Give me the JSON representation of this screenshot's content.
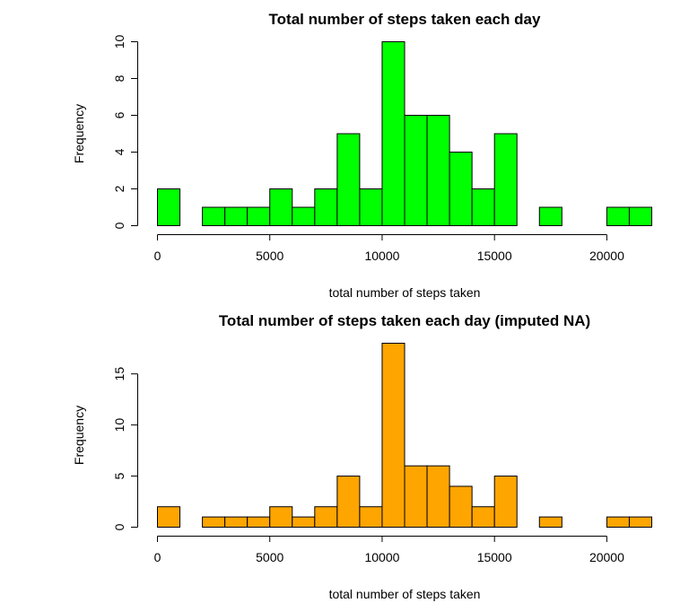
{
  "chart_data": [
    {
      "type": "bar",
      "title": "Total number of steps taken each day",
      "xlabel": "total number of steps taken",
      "ylabel": "Frequency",
      "bar_color": "#00ff00",
      "bin_width": 1000,
      "bins_start": [
        0,
        1000,
        2000,
        3000,
        4000,
        5000,
        6000,
        7000,
        8000,
        9000,
        10000,
        11000,
        12000,
        13000,
        14000,
        15000,
        16000,
        17000,
        18000,
        19000,
        20000,
        21000
      ],
      "values": [
        2,
        0,
        1,
        1,
        1,
        2,
        1,
        2,
        5,
        2,
        10,
        6,
        6,
        4,
        2,
        5,
        0,
        1,
        0,
        0,
        1,
        1
      ],
      "xlim": [
        0,
        22000
      ],
      "ylim": [
        0,
        10
      ],
      "x_ticks": [
        0,
        5000,
        10000,
        15000,
        20000
      ],
      "y_ticks": [
        0,
        2,
        4,
        6,
        8,
        10
      ],
      "grid": false
    },
    {
      "type": "bar",
      "title": "Total number of steps taken each day (imputed NA)",
      "xlabel": "total number of steps taken",
      "ylabel": "Frequency",
      "bar_color": "#ffa500",
      "bin_width": 1000,
      "bins_start": [
        0,
        1000,
        2000,
        3000,
        4000,
        5000,
        6000,
        7000,
        8000,
        9000,
        10000,
        11000,
        12000,
        13000,
        14000,
        15000,
        16000,
        17000,
        18000,
        19000,
        20000,
        21000
      ],
      "values": [
        2,
        0,
        1,
        1,
        1,
        2,
        1,
        2,
        5,
        2,
        18,
        6,
        6,
        4,
        2,
        5,
        0,
        1,
        0,
        0,
        1,
        1
      ],
      "xlim": [
        0,
        22000
      ],
      "ylim": [
        0,
        18
      ],
      "x_ticks": [
        0,
        5000,
        10000,
        15000,
        20000
      ],
      "y_ticks": [
        0,
        5,
        10,
        15
      ],
      "grid": false
    }
  ]
}
